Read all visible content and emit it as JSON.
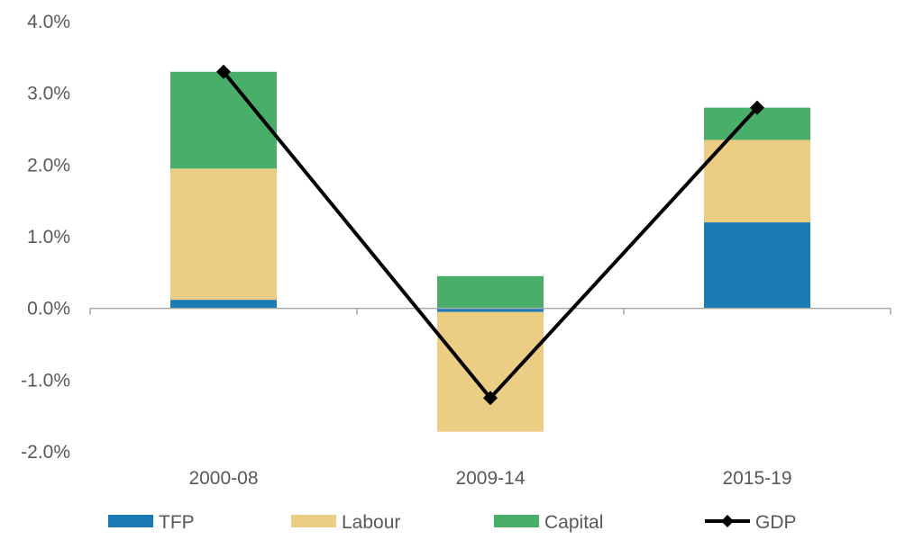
{
  "chart_data": {
    "type": "bar",
    "stacked": true,
    "categories": [
      "2000-08",
      "2009-14",
      "2015-19"
    ],
    "series": [
      {
        "name": "TFP",
        "kind": "bar",
        "color": "#1a7bb4",
        "values": [
          0.12,
          -0.05,
          1.2
        ]
      },
      {
        "name": "Labour",
        "kind": "bar",
        "color": "#ebcd84",
        "values": [
          1.83,
          -1.67,
          1.15
        ]
      },
      {
        "name": "Capital",
        "kind": "bar",
        "color": "#4aae6b",
        "values": [
          1.35,
          0.45,
          0.45
        ]
      },
      {
        "name": "GDP",
        "kind": "line",
        "marker": "diamond",
        "color": "#000000",
        "values": [
          3.3,
          -1.25,
          2.8
        ]
      }
    ],
    "ylim": [
      -2.0,
      4.0
    ],
    "yticks": [
      4.0,
      3.0,
      2.0,
      1.0,
      0.0,
      -1.0,
      -2.0
    ],
    "ytick_labels": [
      "4.0%",
      "3.0%",
      "2.0%",
      "1.0%",
      "0.0%",
      "-1.0%",
      "-2.0%"
    ],
    "grid": false,
    "legend_position": "bottom",
    "axis_color": "#a6a6a6",
    "text_color": "#595959"
  }
}
